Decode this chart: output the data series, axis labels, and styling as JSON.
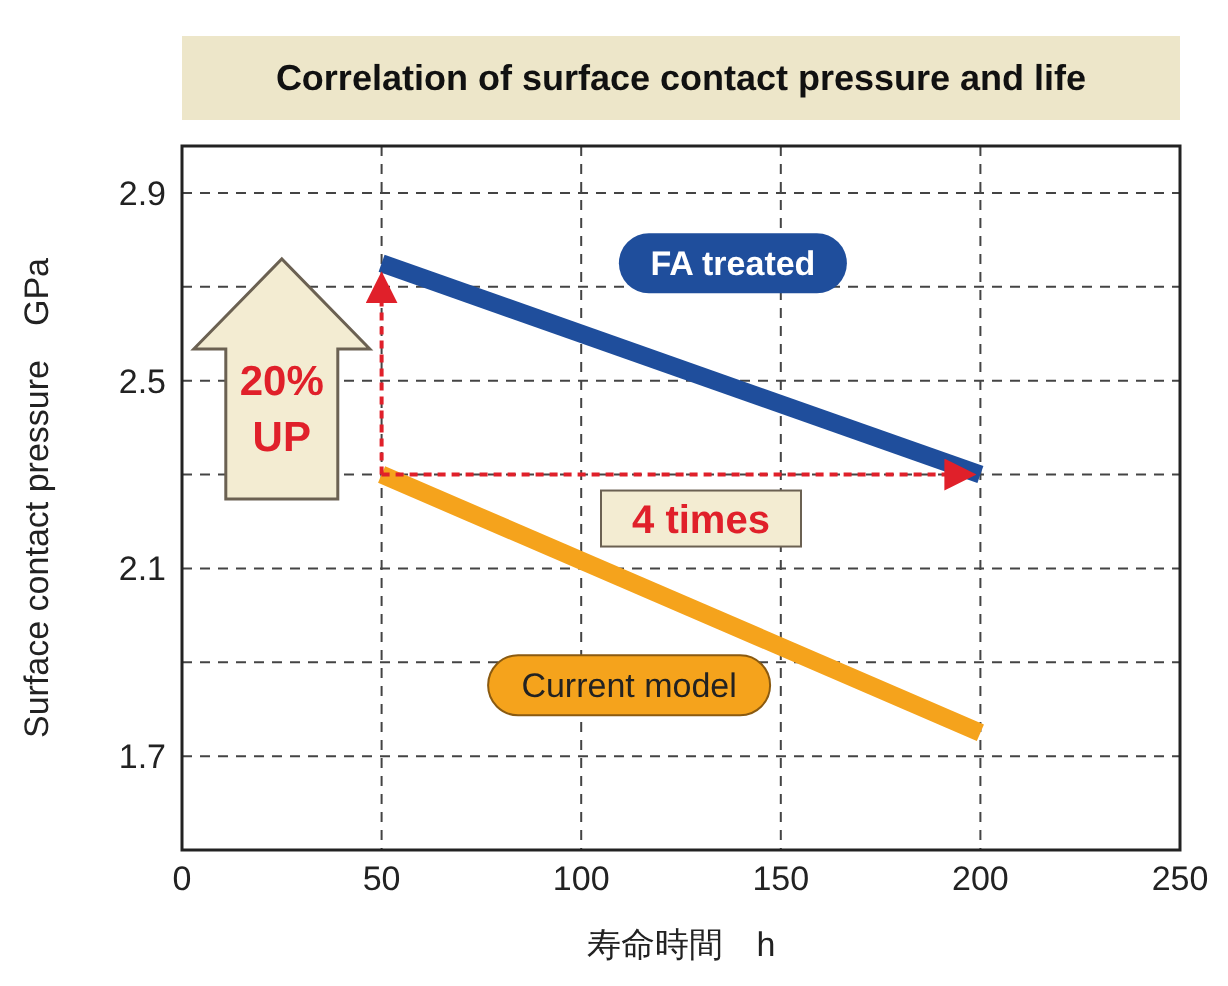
{
  "chart_data": {
    "type": "line",
    "title": "Correlation of surface contact pressure and life",
    "xlabel": "寿命時間　h",
    "ylabel": "Surface contact pressure　GPa",
    "series": [
      {
        "name": "FA treated",
        "color": "#1f4e9c",
        "values": [
          2.75,
          2.3
        ]
      },
      {
        "name": "Current model",
        "color": "#f5a31c",
        "values": [
          2.3,
          1.75
        ]
      }
    ],
    "x": [
      50,
      200
    ],
    "xlim": [
      0,
      250
    ],
    "xticks": [
      0,
      50,
      100,
      150,
      200,
      250
    ],
    "ylim": [
      1.5,
      3.0
    ],
    "yticks": [
      1.7,
      {
        "value": 1.9,
        "label": null
      },
      2.1,
      {
        "value": 2.3,
        "label": null
      },
      2.5,
      {
        "value": 2.7,
        "label": null
      },
      2.9
    ],
    "grid": true,
    "legend": false,
    "marker": "none",
    "line_style": "solid",
    "annotations": [
      "20% UP",
      "4 times"
    ]
  }
}
